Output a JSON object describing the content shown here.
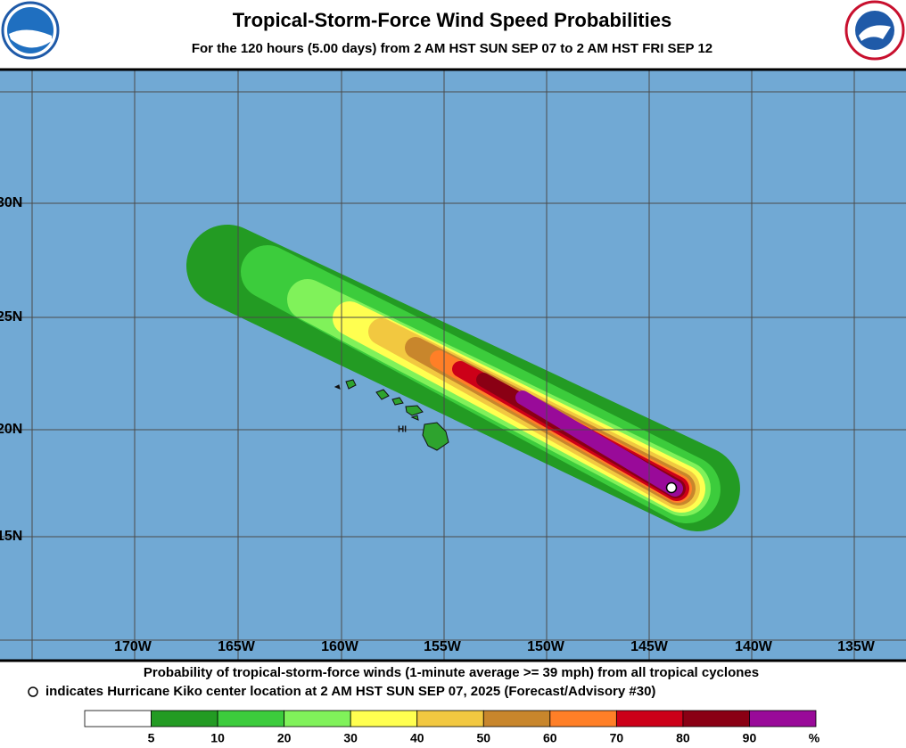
{
  "header": {
    "title": "Tropical-Storm-Force Wind Speed Probabilities",
    "subtitle": "For the 120 hours (5.00 days) from 2 AM HST SUN SEP 07 to 2 AM HST FRI SEP 12"
  },
  "map": {
    "lat_labels": [
      "30N",
      "25N",
      "20N",
      "15N"
    ],
    "lon_labels": [
      "170W",
      "165W",
      "160W",
      "155W",
      "150W",
      "145W",
      "140W",
      "135W"
    ],
    "island_label": "HI"
  },
  "footer": {
    "line1": "Probability of tropical-storm-force winds (1-minute average >= 39 mph) from all tropical cyclones",
    "line2": "indicates Hurricane Kiko center location at 2 AM HST SUN SEP 07, 2025 (Forecast/Advisory #30)"
  },
  "legend": {
    "colors": [
      "#ffffff",
      "#239b23",
      "#3ccc3c",
      "#80f25a",
      "#ffff50",
      "#f2c840",
      "#c8862c",
      "#ff7f27",
      "#cc0018",
      "#8a0014",
      "#990a99"
    ],
    "labels": [
      5,
      10,
      20,
      30,
      40,
      50,
      60,
      70,
      80,
      90
    ],
    "unit": "%"
  }
}
